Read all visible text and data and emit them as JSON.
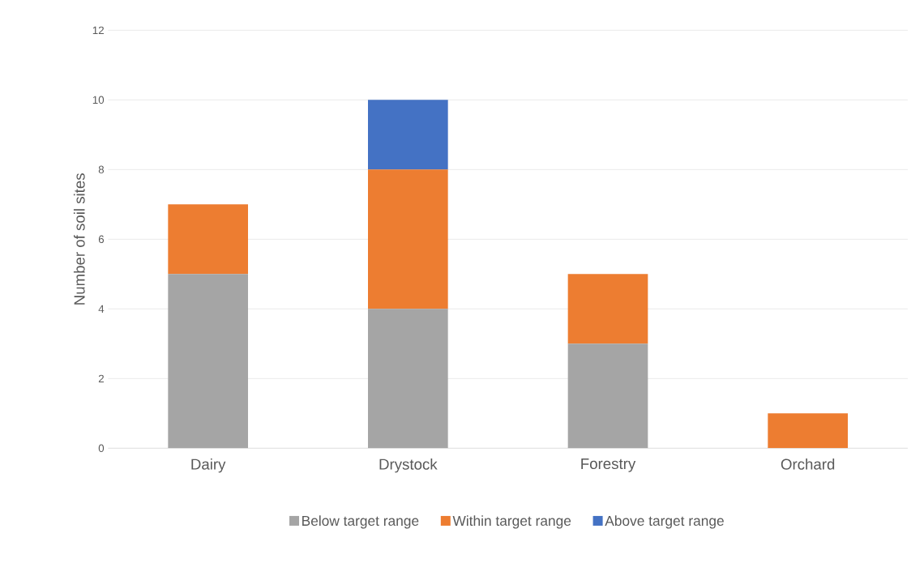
{
  "chart_data": {
    "type": "bar",
    "stacked": true,
    "ylabel": "Number of soil sites",
    "categories": [
      "Dairy",
      "Drystock",
      "Forestry",
      "Orchard"
    ],
    "series": [
      {
        "name": "Below target range",
        "color": "#a5a5a5",
        "values": [
          5,
          4,
          3,
          0
        ]
      },
      {
        "name": "Within target range",
        "color": "#ed7d31",
        "values": [
          2,
          4,
          2,
          1
        ]
      },
      {
        "name": "Above target range",
        "color": "#4472c4",
        "values": [
          0,
          2,
          0,
          0
        ]
      }
    ],
    "ylim": [
      0,
      12
    ],
    "yticks": [
      0,
      2,
      4,
      6,
      8,
      10,
      12
    ],
    "grid": "y",
    "legend": "bottom"
  }
}
